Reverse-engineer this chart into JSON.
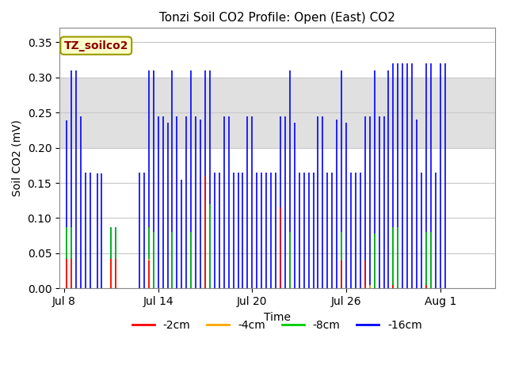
{
  "title": "Tonzi Soil CO2 Profile: Open (East) CO2",
  "ylabel": "Soil CO2 (mV)",
  "xlabel": "Time",
  "annotation_label": "TZ_soilco2",
  "annotation_color": "#8B0000",
  "annotation_bg": "#FFFFCC",
  "annotation_edge": "#999900",
  "ylim": [
    0,
    0.37
  ],
  "yticks": [
    0.0,
    0.05,
    0.1,
    0.15,
    0.2,
    0.25,
    0.3,
    0.35
  ],
  "shaded_region": [
    0.2,
    0.3
  ],
  "shaded_color": "#E0E0E0",
  "legend_entries": [
    "-2cm",
    "-4cm",
    "-8cm",
    "-16cm"
  ],
  "legend_colors": [
    "#FF0000",
    "#FFA500",
    "#00CC00",
    "#0000FF"
  ],
  "xtick_labels": [
    "Jul 8",
    "Jul 14",
    "Jul 20",
    "Jul 26",
    "Aug 1"
  ],
  "xtick_positions": [
    0,
    6,
    12,
    18,
    24
  ],
  "xlim": [
    -0.3,
    27.5
  ],
  "background_color": "#FFFFFF",
  "grid_color": "#C8C8C8",
  "figsize": [
    6.4,
    4.8
  ],
  "dpi": 100,
  "blue_spikes": [
    [
      0.15,
      0.239
    ],
    [
      0.45,
      0.31
    ],
    [
      0.75,
      0.31
    ],
    [
      1.05,
      0.245
    ],
    [
      1.35,
      0.165
    ],
    [
      1.65,
      0.165
    ],
    [
      2.1,
      0.163
    ],
    [
      2.4,
      0.163
    ],
    [
      3.0,
      0.087
    ],
    [
      3.3,
      0.087
    ],
    [
      4.8,
      0.165
    ],
    [
      5.1,
      0.165
    ],
    [
      5.4,
      0.31
    ],
    [
      5.7,
      0.31
    ],
    [
      6.0,
      0.245
    ],
    [
      6.3,
      0.245
    ],
    [
      6.6,
      0.235
    ],
    [
      6.9,
      0.31
    ],
    [
      7.2,
      0.245
    ],
    [
      7.5,
      0.155
    ],
    [
      7.8,
      0.245
    ],
    [
      8.1,
      0.31
    ],
    [
      8.4,
      0.245
    ],
    [
      8.7,
      0.24
    ],
    [
      9.0,
      0.31
    ],
    [
      9.3,
      0.31
    ],
    [
      9.6,
      0.165
    ],
    [
      9.9,
      0.165
    ],
    [
      10.2,
      0.245
    ],
    [
      10.5,
      0.245
    ],
    [
      10.8,
      0.165
    ],
    [
      11.1,
      0.165
    ],
    [
      11.4,
      0.165
    ],
    [
      11.7,
      0.245
    ],
    [
      12.0,
      0.245
    ],
    [
      12.3,
      0.165
    ],
    [
      12.6,
      0.165
    ],
    [
      12.9,
      0.165
    ],
    [
      13.2,
      0.165
    ],
    [
      13.5,
      0.165
    ],
    [
      13.8,
      0.245
    ],
    [
      14.1,
      0.245
    ],
    [
      14.4,
      0.31
    ],
    [
      14.7,
      0.235
    ],
    [
      15.0,
      0.165
    ],
    [
      15.3,
      0.165
    ],
    [
      15.6,
      0.165
    ],
    [
      15.9,
      0.165
    ],
    [
      16.2,
      0.245
    ],
    [
      16.5,
      0.245
    ],
    [
      16.8,
      0.165
    ],
    [
      17.1,
      0.165
    ],
    [
      17.4,
      0.24
    ],
    [
      17.7,
      0.31
    ],
    [
      18.0,
      0.235
    ],
    [
      18.3,
      0.165
    ],
    [
      18.6,
      0.165
    ],
    [
      18.9,
      0.165
    ],
    [
      19.2,
      0.245
    ],
    [
      19.5,
      0.245
    ],
    [
      19.8,
      0.31
    ],
    [
      20.1,
      0.245
    ],
    [
      20.4,
      0.245
    ],
    [
      20.7,
      0.31
    ],
    [
      21.0,
      0.32
    ],
    [
      21.3,
      0.32
    ],
    [
      21.6,
      0.32
    ],
    [
      21.9,
      0.32
    ],
    [
      22.2,
      0.32
    ],
    [
      22.5,
      0.24
    ],
    [
      22.8,
      0.165
    ],
    [
      23.1,
      0.32
    ],
    [
      23.4,
      0.32
    ],
    [
      23.7,
      0.165
    ],
    [
      24.0,
      0.32
    ],
    [
      24.3,
      0.32
    ]
  ],
  "green_spikes": [
    [
      0.15,
      0.087
    ],
    [
      0.45,
      0.087
    ],
    [
      3.0,
      0.087
    ],
    [
      3.3,
      0.087
    ],
    [
      5.4,
      0.087
    ],
    [
      5.7,
      0.08
    ],
    [
      6.9,
      0.08
    ],
    [
      8.1,
      0.08
    ],
    [
      9.0,
      0.125
    ],
    [
      9.3,
      0.12
    ],
    [
      14.4,
      0.08
    ],
    [
      17.7,
      0.08
    ],
    [
      19.8,
      0.078
    ],
    [
      21.0,
      0.087
    ],
    [
      21.3,
      0.087
    ],
    [
      23.1,
      0.08
    ],
    [
      23.4,
      0.08
    ]
  ],
  "orange_spikes": [
    [
      0.15,
      0.042
    ],
    [
      0.45,
      0.042
    ],
    [
      3.0,
      0.042
    ],
    [
      3.3,
      0.042
    ],
    [
      5.4,
      0.042
    ],
    [
      19.2,
      0.005
    ],
    [
      19.5,
      0.005
    ]
  ],
  "red_spikes": [
    [
      0.15,
      0.042
    ],
    [
      0.45,
      0.042
    ],
    [
      3.0,
      0.042
    ],
    [
      3.3,
      0.042
    ],
    [
      5.4,
      0.04
    ],
    [
      9.0,
      0.16
    ],
    [
      13.8,
      0.115
    ],
    [
      17.7,
      0.04
    ],
    [
      19.2,
      0.04
    ],
    [
      21.0,
      0.005
    ],
    [
      23.1,
      0.005
    ]
  ]
}
